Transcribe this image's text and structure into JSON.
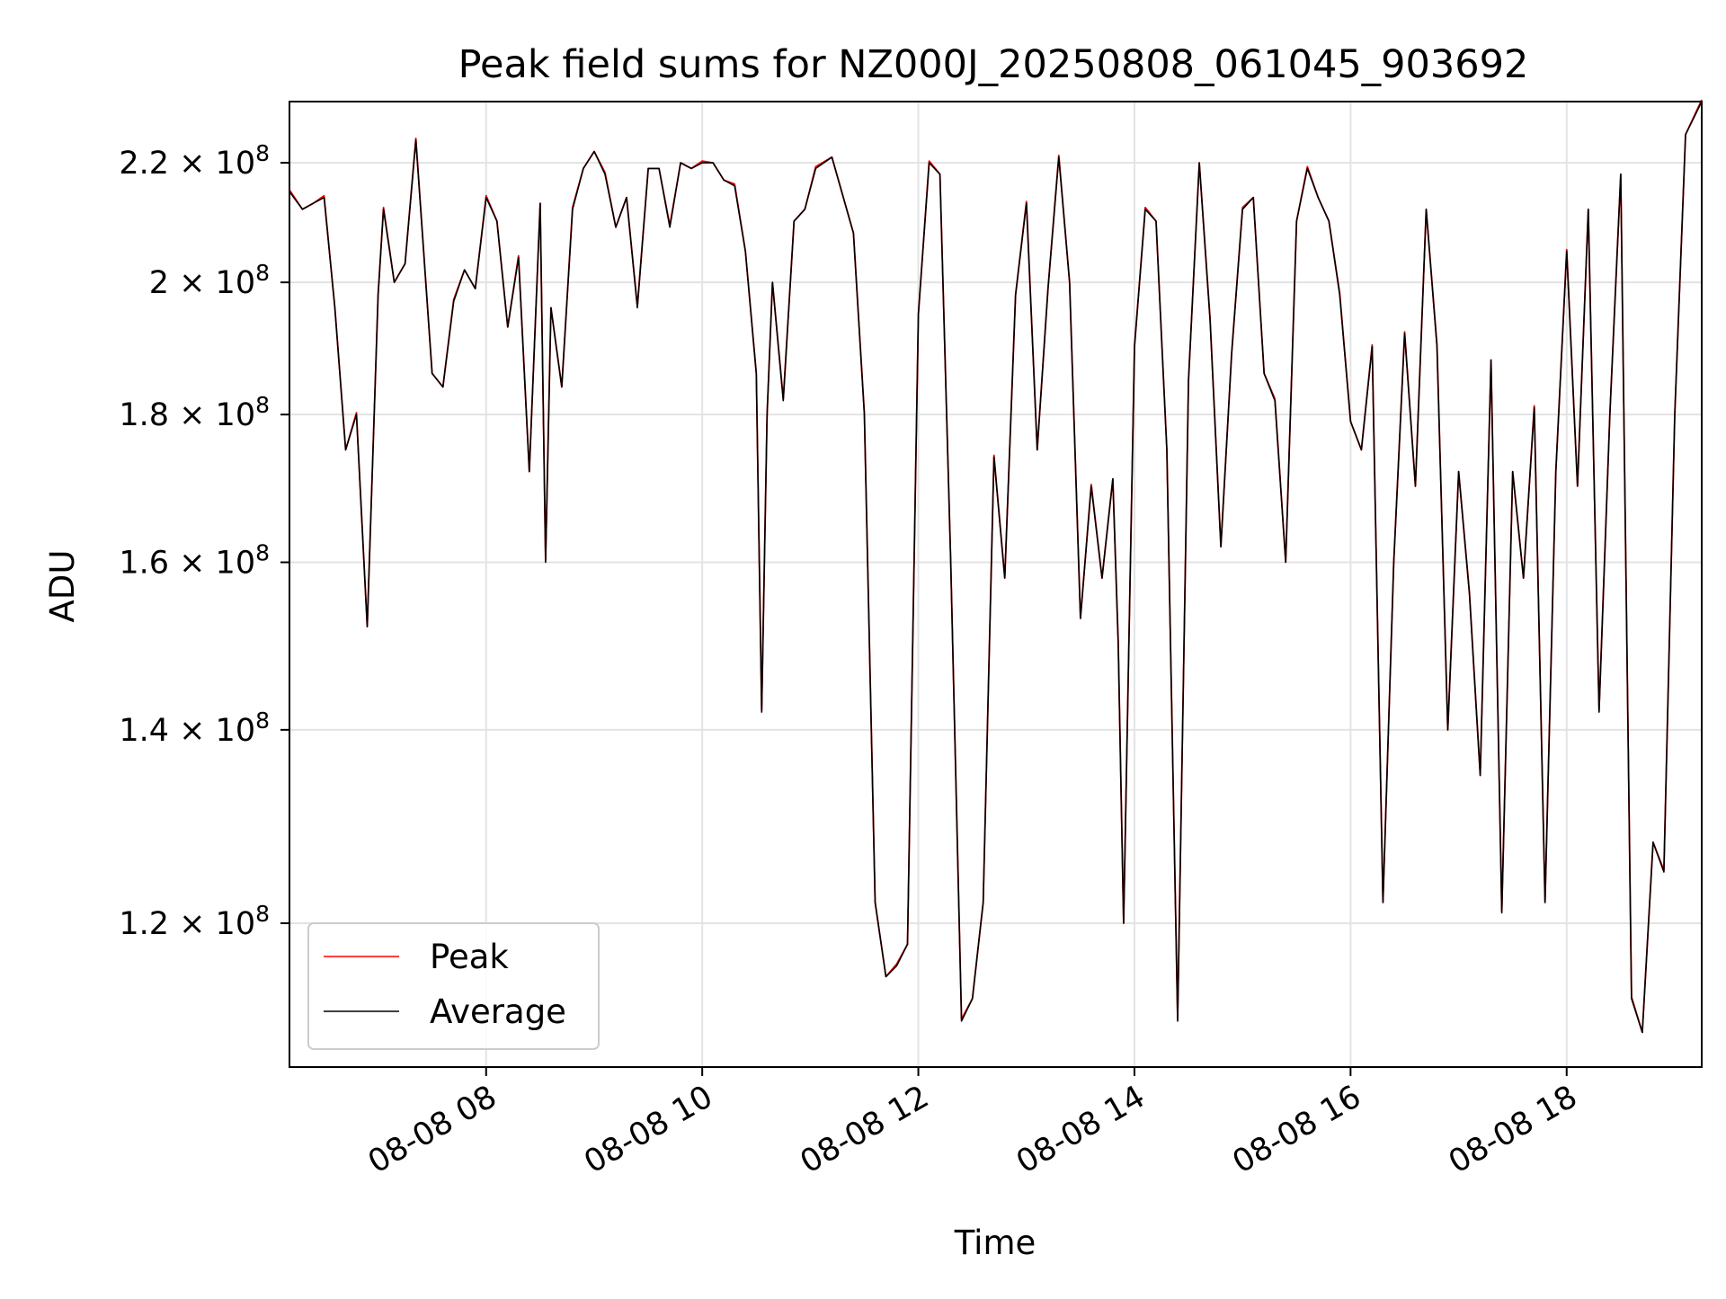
{
  "chart_data": {
    "type": "line",
    "title": "Peak field sums for NZ000J_20250808_061045_903692",
    "xlabel": "Time",
    "ylabel": "ADU",
    "x_ticks": [
      "08-08 08",
      "08-08 10",
      "08-08 12",
      "08-08 14",
      "08-08 16",
      "08-08 18"
    ],
    "x_tick_values": [
      8,
      10,
      12,
      14,
      16,
      18
    ],
    "xlim": [
      6.18,
      19.25
    ],
    "y_ticks": [
      {
        "value": 120000000,
        "mantissa": "1.2",
        "exp": "8"
      },
      {
        "value": 140000000,
        "mantissa": "1.4",
        "exp": "8"
      },
      {
        "value": 160000000,
        "mantissa": "1.6",
        "exp": "8"
      },
      {
        "value": 180000000,
        "mantissa": "1.8",
        "exp": "8"
      },
      {
        "value": 200000000,
        "mantissa": "2",
        "exp": "8"
      },
      {
        "value": 220000000,
        "mantissa": "2.2",
        "exp": "8"
      }
    ],
    "y_scale": "log",
    "ylim": [
      107000000,
      231000000
    ],
    "grid": true,
    "legend_position": "lower-left",
    "colors": {
      "Peak": "#ff0000",
      "Average": "#000000"
    },
    "series": [
      {
        "name": "Peak",
        "color": "#ff0000"
      },
      {
        "name": "Average",
        "color": "#000000"
      }
    ],
    "x": [
      6.18,
      6.3,
      6.4,
      6.5,
      6.6,
      6.7,
      6.8,
      6.9,
      7.0,
      7.05,
      7.15,
      7.25,
      7.35,
      7.5,
      7.6,
      7.7,
      7.8,
      7.9,
      8.0,
      8.1,
      8.2,
      8.3,
      8.4,
      8.5,
      8.55,
      8.6,
      8.7,
      8.8,
      8.9,
      9.0,
      9.1,
      9.2,
      9.3,
      9.4,
      9.5,
      9.6,
      9.7,
      9.8,
      9.9,
      10.0,
      10.1,
      10.2,
      10.3,
      10.4,
      10.5,
      10.55,
      10.6,
      10.65,
      10.75,
      10.85,
      10.95,
      11.05,
      11.2,
      11.4,
      11.5,
      11.6,
      11.7,
      11.8,
      11.9,
      12.0,
      12.1,
      12.2,
      12.3,
      12.4,
      12.5,
      12.6,
      12.7,
      12.8,
      12.9,
      13.0,
      13.1,
      13.2,
      13.3,
      13.4,
      13.5,
      13.6,
      13.7,
      13.8,
      13.85,
      13.9,
      14.0,
      14.1,
      14.2,
      14.3,
      14.4,
      14.5,
      14.6,
      14.7,
      14.8,
      14.9,
      15.0,
      15.1,
      15.2,
      15.3,
      15.4,
      15.5,
      15.6,
      15.7,
      15.8,
      15.9,
      16.0,
      16.1,
      16.2,
      16.3,
      16.4,
      16.5,
      16.6,
      16.7,
      16.8,
      16.9,
      17.0,
      17.1,
      17.2,
      17.3,
      17.4,
      17.5,
      17.6,
      17.7,
      17.8,
      17.9,
      18.0,
      18.1,
      18.2,
      18.3,
      18.4,
      18.5,
      18.6,
      18.7,
      18.8,
      18.9,
      19.0,
      19.1,
      19.25
    ],
    "values": [
      215,
      212,
      213,
      214,
      196,
      175,
      180,
      152,
      198,
      212,
      200,
      203,
      224,
      186,
      184,
      197,
      202,
      199,
      214,
      210,
      193,
      204,
      172,
      213,
      160,
      196,
      184,
      212,
      219,
      222,
      218,
      209,
      214,
      196,
      219,
      219,
      209,
      220,
      219,
      220,
      220,
      217,
      216,
      205,
      186,
      142,
      180,
      200,
      182,
      210,
      212,
      219,
      221,
      208,
      180,
      122,
      115,
      116,
      118,
      195,
      220,
      218,
      160,
      111,
      113,
      122,
      174,
      158,
      198,
      213,
      175,
      199,
      221,
      200,
      153,
      170,
      158,
      171,
      150,
      120,
      190,
      212,
      210,
      175,
      111,
      185,
      220,
      194,
      162,
      189,
      212,
      214,
      186,
      182,
      160,
      210,
      219,
      214,
      210,
      198,
      179,
      175,
      190,
      122,
      160,
      192,
      170,
      212,
      190,
      140,
      172,
      156,
      135,
      188,
      121,
      172,
      158,
      181,
      122,
      172,
      205,
      170,
      212,
      142,
      180,
      218,
      113,
      110,
      128,
      125,
      180,
      225,
      231
    ]
  }
}
